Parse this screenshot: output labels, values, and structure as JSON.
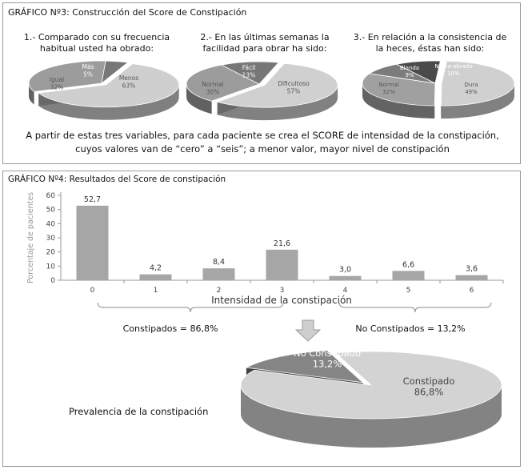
{
  "graph3": {
    "title": "GRÁFICO Nº3: Construcción del Score de Constipación",
    "questions": [
      "1.- Comparado con su frecuencia habitual usted ha obrado:",
      "2.- En las últimas semanas la facilidad para obrar ha sido:",
      "3.- En relación a la consistencia de la heces, éstas han sido:"
    ],
    "summary_line1": "A partir de estas tres variables, para cada paciente se crea el SCORE de intensidad de la constipación,",
    "summary_line2": "cuyos valores van de “cero” a “seis”; a menor valor, mayor nivel de constipación"
  },
  "chart_data": [
    {
      "type": "pie",
      "labels": [
        "Menos",
        "Igual",
        "Más"
      ],
      "values": [
        63,
        32,
        5
      ],
      "value_labels": [
        "63%",
        "32%",
        "5%"
      ]
    },
    {
      "type": "pie",
      "labels": [
        "Dificultoso",
        "Normal",
        "Fácil"
      ],
      "values": [
        57,
        30,
        13
      ],
      "value_labels": [
        "57%",
        "30%",
        "13%"
      ]
    },
    {
      "type": "pie",
      "labels": [
        "Dura",
        "Normal",
        "Blanda",
        "No ha obrado"
      ],
      "values": [
        49,
        32,
        9,
        10
      ],
      "value_labels": [
        "49%",
        "32%",
        "9%",
        "10%"
      ]
    },
    {
      "type": "bar",
      "title": "GRÁFICO Nº4: Resultados del Score de constipación",
      "categories": [
        "0",
        "1",
        "2",
        "3",
        "4",
        "5",
        "6"
      ],
      "values": [
        52.7,
        4.2,
        8.4,
        21.6,
        3.0,
        6.6,
        3.6
      ],
      "value_labels": [
        "52,7",
        "4,2",
        "8,4",
        "21,6",
        "3,0",
        "6,6",
        "3,6"
      ],
      "xlabel": "Intensidad de la constipación",
      "ylabel": "Porcentaje de pacientes",
      "ylim": [
        0,
        60
      ],
      "yticks": [
        "0",
        "10",
        "20",
        "30",
        "40",
        "50",
        "60"
      ],
      "groups": [
        {
          "label": "Constipados = 86,8%",
          "categories": [
            "0",
            "1",
            "2",
            "3"
          ]
        },
        {
          "label": "No Constipados = 13,2%",
          "categories": [
            "4",
            "5",
            "6"
          ]
        }
      ]
    },
    {
      "type": "pie",
      "title": "Prevalencia de la constipación",
      "labels": [
        "Constipado",
        "No Constipado"
      ],
      "values": [
        86.8,
        13.2
      ],
      "value_labels": [
        "86,8%",
        "13,2%"
      ]
    }
  ]
}
